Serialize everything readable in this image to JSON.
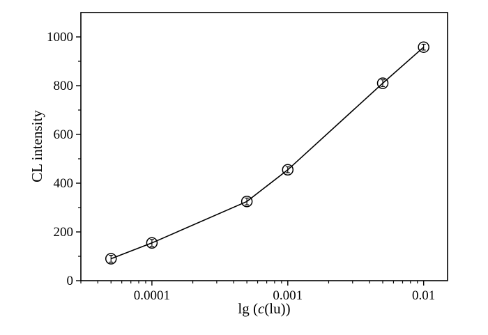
{
  "chart_data": {
    "type": "line",
    "xlabel_prefix": "lg (",
    "xlabel_italic": "c",
    "xlabel_suffix": "(lu))",
    "ylabel": "CL intensity",
    "x_scale": "log",
    "xlim": [
      3e-05,
      0.015
    ],
    "ylim": [
      0,
      1100
    ],
    "x_ticks": [
      {
        "value": 0.0001,
        "label": "0.0001"
      },
      {
        "value": 0.001,
        "label": "0.001"
      },
      {
        "value": 0.01,
        "label": "0.01"
      }
    ],
    "y_ticks": [
      0,
      200,
      400,
      600,
      800,
      1000
    ],
    "grid": false,
    "marker": "open-circle-with-errorbar",
    "series": [
      {
        "x": [
          5e-05,
          0.0001,
          0.0005,
          0.001,
          0.005,
          0.01
        ],
        "y": [
          90,
          155,
          325,
          455,
          810,
          958
        ],
        "err": [
          14,
          14,
          14,
          12,
          14,
          12
        ]
      }
    ]
  }
}
